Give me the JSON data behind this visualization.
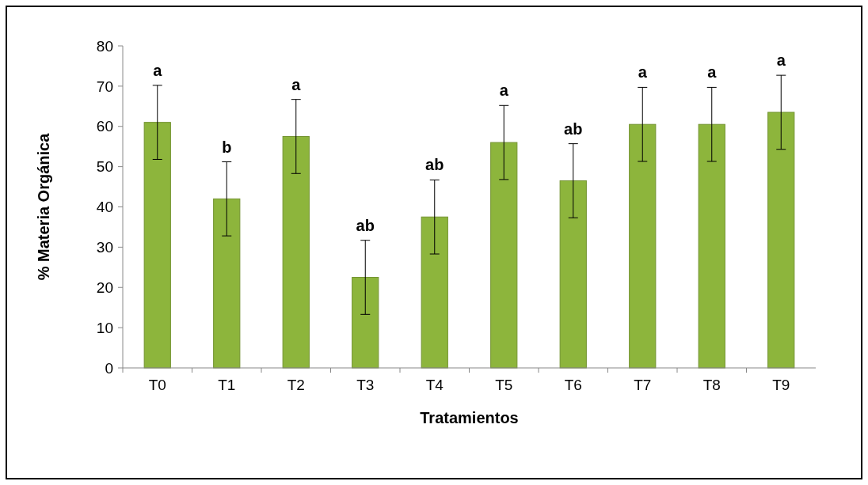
{
  "chart_data": {
    "type": "bar",
    "xlabel": "Tratamientos",
    "ylabel": "% Materia Orgánica",
    "categories": [
      "T0",
      "T1",
      "T2",
      "T3",
      "T4",
      "T5",
      "T6",
      "T7",
      "T8",
      "T9"
    ],
    "values": [
      61,
      42,
      57.5,
      22.5,
      37.5,
      56,
      46.5,
      60.5,
      60.5,
      63.5
    ],
    "errors": [
      9.2,
      9.2,
      9.2,
      9.2,
      9.2,
      9.2,
      9.2,
      9.2,
      9.2,
      9.2
    ],
    "color": "#8db53c",
    "ylim": [
      0,
      80
    ],
    "yticks": [
      0,
      10,
      20,
      30,
      40,
      50,
      60,
      70,
      80
    ],
    "grid": false,
    "annotations": [
      "a",
      "b",
      "a",
      "ab",
      "ab",
      "a",
      "ab",
      "a",
      "a",
      "a"
    ]
  }
}
